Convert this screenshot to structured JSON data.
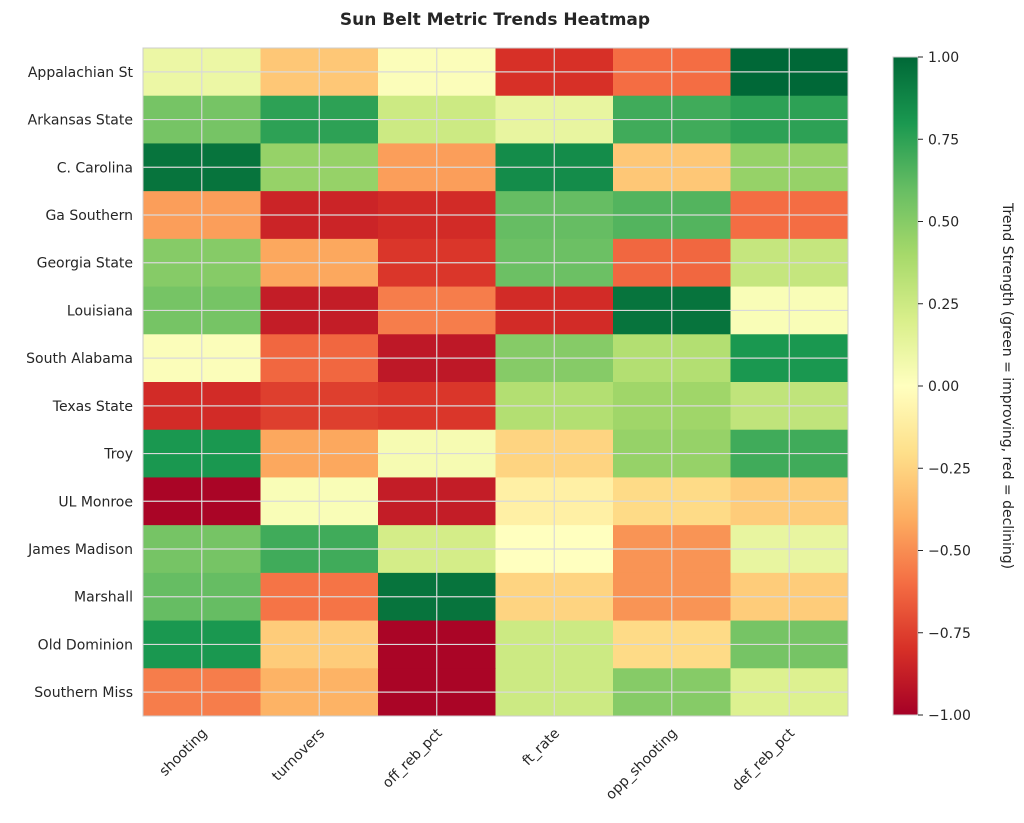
{
  "chart_data": {
    "type": "heatmap",
    "title": "Sun Belt Metric Trends Heatmap",
    "columns": [
      "shooting",
      "turnovers",
      "off_reb_pct",
      "ft_rate",
      "opp_shooting",
      "def_reb_pct"
    ],
    "rows": [
      "Appalachian St",
      "Arkansas State",
      "C. Carolina",
      "Ga Southern",
      "Georgia State",
      "Louisiana",
      "South Alabama",
      "Texas State",
      "Troy",
      "UL Monroe",
      "James Madison",
      "Marshall",
      "Old Dominion",
      "Southern Miss"
    ],
    "values": [
      [
        0.1,
        -0.3,
        0.02,
        -0.8,
        -0.6,
        1.0
      ],
      [
        0.55,
        0.75,
        0.25,
        0.12,
        0.7,
        0.75
      ],
      [
        0.95,
        0.45,
        -0.45,
        0.85,
        -0.3,
        0.45
      ],
      [
        -0.45,
        -0.85,
        -0.82,
        0.6,
        0.65,
        -0.6
      ],
      [
        0.5,
        -0.42,
        -0.78,
        0.58,
        -0.62,
        0.28
      ],
      [
        0.55,
        -0.88,
        -0.55,
        -0.82,
        0.95,
        0.03
      ],
      [
        0.02,
        -0.62,
        -0.9,
        0.5,
        0.35,
        0.8
      ],
      [
        -0.82,
        -0.75,
        -0.78,
        0.35,
        0.42,
        0.3
      ],
      [
        0.8,
        -0.42,
        0.05,
        -0.25,
        0.45,
        0.7
      ],
      [
        -0.98,
        0.03,
        -0.88,
        -0.1,
        -0.22,
        -0.28
      ],
      [
        0.55,
        0.7,
        0.22,
        0.0,
        -0.48,
        0.12
      ],
      [
        0.6,
        -0.58,
        0.95,
        -0.25,
        -0.48,
        -0.28
      ],
      [
        0.8,
        -0.28,
        -0.98,
        0.25,
        -0.22,
        0.55
      ],
      [
        -0.55,
        -0.38,
        -0.98,
        0.25,
        0.5,
        0.18
      ]
    ],
    "vmin": -1.0,
    "vmax": 1.0,
    "colormap": [
      "#a50026",
      "#d73027",
      "#f46d43",
      "#fdae61",
      "#fee08b",
      "#ffffbf",
      "#d9ef8b",
      "#a6d96a",
      "#66bd63",
      "#1a9850",
      "#006837"
    ],
    "colorbar": {
      "label": "Trend Strength (green = improving, red = declining)",
      "ticks": [
        1.0,
        0.75,
        0.5,
        0.25,
        0.0,
        -0.25,
        -0.5,
        -0.75,
        -1.0
      ],
      "tick_labels": [
        "1.00",
        "0.75",
        "0.50",
        "0.25",
        "0.00",
        "−0.25",
        "−0.50",
        "−0.75",
        "−1.00"
      ]
    },
    "grid": true
  }
}
